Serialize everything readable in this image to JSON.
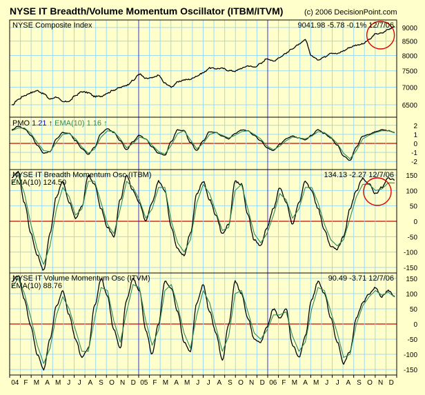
{
  "title": "NYSE IT Breadth/Volume Momentum Oscillator (ITBM/ITVM)",
  "copyright": "(c) 2006 DecisionPoint.com",
  "x_axis": {
    "labels": [
      "04",
      "F",
      "M",
      "A",
      "M",
      "J",
      "J",
      "A",
      "S",
      "O",
      "N",
      "D",
      "05",
      "F",
      "M",
      "A",
      "M",
      "J",
      "J",
      "A",
      "S",
      "O",
      "N",
      "D",
      "06",
      "F",
      "M",
      "A",
      "M",
      "J",
      "J",
      "A",
      "S",
      "O",
      "N",
      "D"
    ]
  },
  "colors": {
    "background": "#FFFFCC",
    "grid": "#9FD9F0",
    "border": "#000000",
    "zero_line": "#CC0000",
    "year_marker": "#3333CC",
    "price_line": "#000000",
    "ema_line": "#2A8C5A",
    "circle": "#DD0000"
  },
  "chart_data": [
    {
      "type": "line",
      "panel": "price",
      "label": "NYSE Composite Index",
      "readout": "9041.98  -5.78  -0.1%  12/7/06",
      "yticks": [
        6500,
        7000,
        7500,
        8000,
        8500,
        9000
      ],
      "ylim": [
        6170,
        9290
      ],
      "log_scale": true,
      "series": [
        {
          "values": [
            6480,
            6650,
            6760,
            6840,
            6900,
            6810,
            6660,
            6720,
            6580,
            6600,
            6760,
            6870,
            6840,
            6730,
            6740,
            6830,
            6920,
            6990,
            7060,
            7200,
            7400,
            7260,
            7280,
            7360,
            7120,
            7010,
            7150,
            7220,
            7240,
            7340,
            7440,
            7590,
            7570,
            7580,
            7510,
            7490,
            7580,
            7660,
            7620,
            7730,
            7900,
            7810,
            7940,
            8080,
            8240,
            8380,
            8540,
            7980,
            7860,
            7950,
            8090,
            8060,
            8160,
            8280,
            8360,
            8400,
            8550,
            8760,
            8790,
            8930,
            9040
          ]
        }
      ],
      "marker": {
        "shape": "circle",
        "month": 34.5
      }
    },
    {
      "type": "line",
      "panel": "pmo",
      "label": "PMO",
      "readout_pmo": "1.21",
      "readout_ema_label": "EMA(10)",
      "readout_ema": "1.16",
      "yticks": [
        -2,
        -1,
        0,
        1,
        2
      ],
      "ylim": [
        -2.9,
        2.9
      ],
      "series": [
        {
          "name": "PMO",
          "values": [
            1.5,
            1.9,
            1.6,
            0.9,
            -0.2,
            -1.1,
            -0.9,
            0.5,
            1.2,
            1.1,
            0.3,
            -0.6,
            -1.2,
            -0.4,
            1.1,
            1.6,
            1.2,
            0.3,
            -0.7,
            0.2,
            0.9,
            0.5,
            -0.4,
            -1.1,
            -1.3,
            0.2,
            1.5,
            1.4,
            0.1,
            -0.8,
            0.3,
            1.3,
            1.2,
            0.8,
            0.5,
            1.1,
            1.5,
            1.4,
            0.9,
            0.3,
            -0.5,
            -0.8,
            -0.1,
            0.5,
            0.8,
            0.6,
            0.4,
            0.9,
            1.5,
            1.1,
            0.6,
            -0.2,
            -1.4,
            -1.9,
            -0.4,
            0.8,
            1.0,
            1.3,
            1.5,
            1.4,
            1.21
          ]
        },
        {
          "name": "EMA(10)",
          "values": [
            1.4,
            1.7,
            1.7,
            1.1,
            0.1,
            -0.8,
            -0.9,
            0.1,
            1.0,
            1.1,
            0.5,
            -0.4,
            -1.1,
            -0.6,
            0.7,
            1.4,
            1.3,
            0.5,
            -0.5,
            0.0,
            0.7,
            0.5,
            -0.2,
            -0.9,
            -1.2,
            -0.2,
            1.1,
            1.4,
            0.4,
            -0.6,
            0.0,
            1.0,
            1.2,
            0.9,
            0.6,
            0.9,
            1.3,
            1.4,
            1.0,
            0.5,
            -0.3,
            -0.7,
            -0.3,
            0.3,
            0.7,
            0.6,
            0.5,
            0.8,
            1.3,
            1.2,
            0.7,
            0.0,
            -1.1,
            -1.7,
            -0.8,
            0.5,
            0.9,
            1.2,
            1.4,
            1.4,
            1.16
          ]
        }
      ]
    },
    {
      "type": "line",
      "panel": "itbm",
      "label": "NYSE IT Breadth Momentum Osc (ITBM)",
      "ema_label": "EMA(10)",
      "ema_value": "124.50",
      "readout": "134.13  -2.27  12/7/06",
      "yticks": [
        -150,
        -100,
        -50,
        0,
        50,
        100,
        150
      ],
      "ylim": [
        -168,
        168
      ],
      "series": [
        {
          "name": "ITBM",
          "values": [
            140,
            160,
            60,
            -40,
            -110,
            -160,
            -40,
            80,
            130,
            60,
            10,
            50,
            150,
            120,
            40,
            -20,
            -50,
            70,
            150,
            100,
            60,
            0,
            60,
            130,
            100,
            -20,
            -90,
            -110,
            -40,
            90,
            130,
            70,
            20,
            -40,
            -10,
            130,
            120,
            20,
            -60,
            -80,
            -20,
            40,
            110,
            60,
            -10,
            60,
            130,
            100,
            40,
            -30,
            -80,
            -90,
            -50,
            40,
            100,
            140,
            120,
            90,
            110,
            140,
            134
          ]
        },
        {
          "name": "EMA(10)",
          "values": [
            120,
            150,
            90,
            -10,
            -90,
            -140,
            -80,
            40,
            110,
            80,
            20,
            40,
            130,
            130,
            60,
            -10,
            -40,
            40,
            130,
            110,
            70,
            10,
            40,
            110,
            110,
            0,
            -70,
            -100,
            -60,
            60,
            120,
            90,
            30,
            -30,
            -20,
            100,
            120,
            40,
            -40,
            -70,
            -40,
            20,
            90,
            70,
            10,
            40,
            110,
            110,
            60,
            -10,
            -60,
            -80,
            -60,
            10,
            80,
            120,
            120,
            100,
            105,
            125,
            124.5
          ]
        }
      ],
      "marker": {
        "shape": "circle",
        "month": 34.2
      }
    },
    {
      "type": "line",
      "panel": "itvm",
      "label": "NYSE IT Volume Momentum Osc (ITVM)",
      "ema_label": "EMA(10)",
      "ema_value": "88.76",
      "readout": "90.49  -3.71  12/7/06",
      "yticks": [
        -150,
        -100,
        -50,
        0,
        50,
        100,
        150
      ],
      "ylim": [
        -168,
        168
      ],
      "series": [
        {
          "name": "ITVM",
          "values": [
            140,
            160,
            80,
            -10,
            -100,
            -150,
            -50,
            60,
            110,
            30,
            -50,
            -110,
            -80,
            60,
            150,
            90,
            -20,
            -80,
            80,
            150,
            110,
            -20,
            -100,
            0,
            140,
            120,
            40,
            -60,
            -90,
            70,
            130,
            40,
            -30,
            -120,
            0,
            140,
            100,
            20,
            -50,
            -60,
            -10,
            50,
            20,
            50,
            -70,
            -110,
            -40,
            80,
            140,
            100,
            20,
            -60,
            -130,
            -90,
            20,
            70,
            100,
            120,
            90,
            110,
            90
          ]
        },
        {
          "name": "EMA(10)",
          "values": [
            120,
            150,
            100,
            20,
            -70,
            -130,
            -80,
            30,
            90,
            50,
            -20,
            -90,
            -90,
            20,
            120,
            110,
            10,
            -60,
            40,
            130,
            120,
            10,
            -70,
            -20,
            110,
            130,
            60,
            -30,
            -80,
            30,
            110,
            70,
            -10,
            -90,
            -40,
            100,
            110,
            40,
            -30,
            -50,
            -20,
            30,
            30,
            40,
            -40,
            -90,
            -60,
            50,
            120,
            110,
            40,
            -30,
            -110,
            -100,
            0,
            60,
            90,
            110,
            95,
            105,
            88.76
          ]
        }
      ]
    }
  ]
}
